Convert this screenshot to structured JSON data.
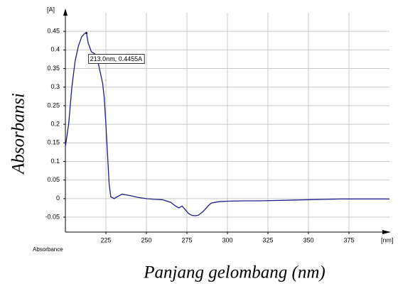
{
  "chart_data": {
    "type": "line",
    "x": [
      200,
      202,
      204,
      206,
      208,
      210,
      212,
      213,
      214,
      216,
      218,
      220,
      222,
      223,
      224,
      225,
      226,
      227,
      228,
      230,
      232,
      235,
      240,
      245,
      250,
      255,
      260,
      265,
      268,
      270,
      272,
      274,
      276,
      278,
      280,
      282,
      285,
      288,
      290,
      295,
      300,
      310,
      320,
      330,
      340,
      350,
      360,
      370,
      380,
      390,
      400
    ],
    "series": [
      {
        "color": "#1c1c8a",
        "values": [
          0.14,
          0.2,
          0.3,
          0.37,
          0.41,
          0.435,
          0.445,
          0.4455,
          0.42,
          0.395,
          0.39,
          0.37,
          0.33,
          0.31,
          0.27,
          0.2,
          0.12,
          0.04,
          0.005,
          0.0,
          0.005,
          0.012,
          0.008,
          0.003,
          0.0,
          -0.002,
          -0.003,
          -0.01,
          -0.02,
          -0.025,
          -0.02,
          -0.03,
          -0.04,
          -0.045,
          -0.046,
          -0.045,
          -0.035,
          -0.02,
          -0.012,
          -0.008,
          -0.007,
          -0.006,
          -0.006,
          -0.005,
          -0.004,
          -0.003,
          -0.002,
          -0.001,
          -0.001,
          -0.001,
          -0.001
        ]
      }
    ],
    "xlim": [
      200,
      400
    ],
    "xticks": [
      225,
      250,
      275,
      300,
      325,
      350,
      375
    ],
    "ylim": [
      -0.09,
      0.5
    ],
    "yticks": [
      -0.05,
      0,
      0.05,
      0.1,
      0.15,
      0.2,
      0.25,
      0.3,
      0.35,
      0.4,
      0.45
    ],
    "grid": true,
    "x_unit": "[nm]",
    "y_unit": "[A]",
    "y_axis_caption": "Absorbance",
    "xlabel": "Panjang gelombang (nm)",
    "ylabel": "Absorbansi",
    "annotation": {
      "text": "213.0nm, 0.4455A",
      "x": 213,
      "y": 0.4455
    }
  }
}
